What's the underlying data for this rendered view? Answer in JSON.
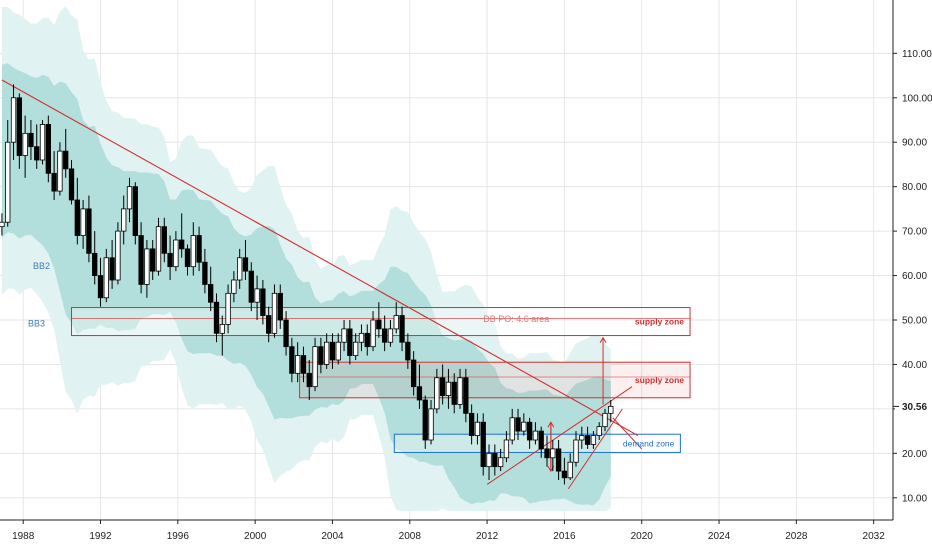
{
  "chart_data": {
    "type": "candlestick",
    "title": "",
    "x_axis": {
      "labels": [
        "1988",
        "1992",
        "1996",
        "2000",
        "2004",
        "2008",
        "2012",
        "2016",
        "2020",
        "2024",
        "2028",
        "2032"
      ],
      "range": [
        1986.8,
        2033.0
      ]
    },
    "y_axis": {
      "labels": [
        "10.00",
        "20.00",
        "30.00",
        "40.00",
        "50.00",
        "60.00",
        "70.00",
        "80.00",
        "90.00",
        "100.00",
        "110.00"
      ],
      "range": [
        5,
        122
      ],
      "position": "right"
    },
    "last_price": {
      "label": "30.56",
      "value": 30.56
    },
    "bands": [
      {
        "name": "BB2"
      },
      {
        "name": "BB3"
      }
    ],
    "zones": [
      {
        "name": "supply zone",
        "low": 46.5,
        "high": 52.8,
        "color": "#d32f2f"
      },
      {
        "name": "supply zone",
        "low": 32.5,
        "high": 40.5,
        "color": "#d32f2f"
      },
      {
        "name": "demand zone",
        "low": 20.2,
        "high": 24.3,
        "color": "#1e6fd9"
      }
    ],
    "annotation": {
      "text": "DB PO: 4.6 area",
      "color": "#e57373"
    },
    "colors": {
      "bull": "#ffffff",
      "bear": "#000000",
      "band_inner": "#b2dfdb",
      "band_outer": "#e0f2f1",
      "trendline": "#d32f2f",
      "grid": "#e6e6e6"
    },
    "candles": [
      [
        1986.9,
        71,
        74,
        69,
        72
      ],
      [
        1987.2,
        72,
        95,
        71,
        90
      ],
      [
        1987.5,
        90,
        103,
        86,
        100
      ],
      [
        1987.8,
        100,
        101,
        84,
        87
      ],
      [
        1988.1,
        87,
        96,
        82,
        92
      ],
      [
        1988.4,
        92,
        95,
        86,
        89
      ],
      [
        1988.7,
        89,
        94,
        84,
        86
      ],
      [
        1989.0,
        86,
        95,
        85,
        94
      ],
      [
        1989.3,
        94,
        96,
        81,
        83
      ],
      [
        1989.6,
        83,
        88,
        77,
        79
      ],
      [
        1989.9,
        79,
        90,
        78,
        88
      ],
      [
        1990.2,
        88,
        93,
        82,
        84
      ],
      [
        1990.5,
        84,
        86,
        76,
        77
      ],
      [
        1990.8,
        77,
        82,
        67,
        69
      ],
      [
        1991.1,
        69,
        77,
        66,
        75
      ],
      [
        1991.4,
        75,
        78,
        63,
        65
      ],
      [
        1991.7,
        65,
        70,
        58,
        60
      ],
      [
        1992.0,
        60,
        64,
        53,
        55
      ],
      [
        1992.3,
        55,
        66,
        54,
        64
      ],
      [
        1992.6,
        64,
        68,
        57,
        59
      ],
      [
        1992.9,
        59,
        72,
        58,
        70
      ],
      [
        1993.2,
        70,
        78,
        67,
        75
      ],
      [
        1993.5,
        75,
        82,
        72,
        80
      ],
      [
        1993.8,
        80,
        81,
        67,
        69
      ],
      [
        1994.1,
        69,
        72,
        56,
        58
      ],
      [
        1994.4,
        58,
        68,
        55,
        66
      ],
      [
        1994.7,
        66,
        68,
        59,
        61
      ],
      [
        1995.0,
        61,
        73,
        60,
        71
      ],
      [
        1995.3,
        71,
        73,
        63,
        65
      ],
      [
        1995.6,
        65,
        69,
        59,
        62
      ],
      [
        1995.9,
        62,
        70,
        61,
        68
      ],
      [
        1996.2,
        68,
        74,
        64,
        66
      ],
      [
        1996.5,
        66,
        67,
        60,
        62
      ],
      [
        1996.8,
        62,
        72,
        60,
        69
      ],
      [
        1997.1,
        69,
        71,
        61,
        63
      ],
      [
        1997.4,
        63,
        66,
        56,
        58
      ],
      [
        1997.7,
        58,
        62,
        52,
        54
      ],
      [
        1998.0,
        54,
        56,
        45,
        47
      ],
      [
        1998.3,
        47,
        51,
        42,
        49
      ],
      [
        1998.6,
        49,
        58,
        47,
        56
      ],
      [
        1998.9,
        56,
        61,
        54,
        59
      ],
      [
        1999.2,
        59,
        66,
        57,
        64
      ],
      [
        1999.5,
        64,
        68,
        59,
        61
      ],
      [
        1999.8,
        61,
        63,
        52,
        54
      ],
      [
        2000.1,
        54,
        60,
        50,
        57
      ],
      [
        2000.4,
        57,
        59,
        49,
        51
      ],
      [
        2000.7,
        51,
        53,
        45,
        47
      ],
      [
        2001.0,
        47,
        58,
        46,
        56
      ],
      [
        2001.3,
        56,
        58,
        48,
        50
      ],
      [
        2001.6,
        50,
        52,
        42,
        44
      ],
      [
        2001.9,
        44,
        46,
        36,
        38
      ],
      [
        2002.2,
        38,
        45,
        36,
        42
      ],
      [
        2002.5,
        42,
        44,
        36,
        38
      ],
      [
        2002.8,
        38,
        41,
        32,
        35
      ],
      [
        2003.1,
        35,
        46,
        34,
        44
      ],
      [
        2003.4,
        44,
        46,
        38,
        40
      ],
      [
        2003.7,
        40,
        47,
        39,
        45
      ],
      [
        2004.0,
        45,
        47,
        39,
        41
      ],
      [
        2004.3,
        41,
        47,
        40,
        45
      ],
      [
        2004.6,
        45,
        50,
        43,
        48
      ],
      [
        2004.9,
        48,
        50,
        40,
        42
      ],
      [
        2005.2,
        42,
        47,
        41,
        45
      ],
      [
        2005.5,
        45,
        49,
        43,
        47
      ],
      [
        2005.8,
        47,
        49,
        42,
        44
      ],
      [
        2006.1,
        44,
        52,
        43,
        50
      ],
      [
        2006.4,
        50,
        54,
        46,
        48
      ],
      [
        2006.7,
        48,
        51,
        43,
        45
      ],
      [
        2007.0,
        45,
        50,
        44,
        48
      ],
      [
        2007.3,
        48,
        54,
        47,
        51
      ],
      [
        2007.6,
        51,
        53,
        43,
        45
      ],
      [
        2007.9,
        45,
        47,
        39,
        41
      ],
      [
        2008.2,
        41,
        43,
        33,
        35
      ],
      [
        2008.5,
        35,
        40,
        30,
        32
      ],
      [
        2008.8,
        32,
        33,
        21,
        23
      ],
      [
        2009.1,
        23,
        32,
        22,
        30
      ],
      [
        2009.4,
        30,
        39,
        29,
        37
      ],
      [
        2009.7,
        37,
        40,
        31,
        33
      ],
      [
        2010.0,
        33,
        39,
        30,
        36
      ],
      [
        2010.3,
        36,
        38,
        29,
        31
      ],
      [
        2010.6,
        31,
        39,
        30,
        37
      ],
      [
        2010.9,
        37,
        39,
        27,
        29
      ],
      [
        2011.2,
        29,
        31,
        22,
        24
      ],
      [
        2011.5,
        24,
        29,
        22,
        27
      ],
      [
        2011.8,
        27,
        29,
        15,
        17
      ],
      [
        2012.1,
        17,
        22,
        14,
        20
      ],
      [
        2012.4,
        20,
        22,
        15,
        17
      ],
      [
        2012.7,
        17,
        21,
        16,
        19
      ],
      [
        2013.0,
        19,
        25,
        18,
        23
      ],
      [
        2013.3,
        23,
        30,
        22,
        28
      ],
      [
        2013.6,
        28,
        30,
        23,
        25
      ],
      [
        2013.9,
        25,
        29,
        24,
        27
      ],
      [
        2014.2,
        27,
        28,
        21,
        23
      ],
      [
        2014.5,
        23,
        27,
        22,
        25
      ],
      [
        2014.8,
        25,
        26,
        19,
        21
      ],
      [
        2015.1,
        21,
        24,
        17,
        19
      ],
      [
        2015.4,
        19,
        23,
        16,
        21
      ],
      [
        2015.7,
        21,
        23,
        14,
        16
      ],
      [
        2016.0,
        16,
        19,
        13,
        14.5
      ],
      [
        2016.3,
        14.5,
        20,
        14,
        18
      ],
      [
        2016.6,
        18,
        25,
        17,
        23
      ],
      [
        2016.9,
        23,
        26,
        21,
        24
      ],
      [
        2017.2,
        24,
        26,
        21,
        22
      ],
      [
        2017.5,
        22,
        25,
        21,
        24
      ],
      [
        2017.8,
        24,
        27,
        23,
        26
      ],
      [
        2018.1,
        26,
        30,
        25,
        29
      ],
      [
        2018.4,
        29,
        32,
        27,
        30.56
      ]
    ]
  }
}
